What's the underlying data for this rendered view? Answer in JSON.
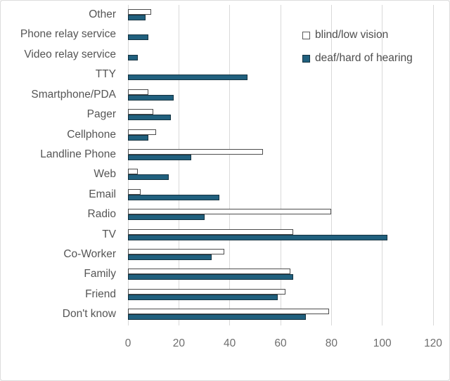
{
  "chart_data": {
    "type": "bar",
    "orientation": "horizontal",
    "title": "",
    "xlabel": "",
    "ylabel": "",
    "grid": true,
    "legend_position": "top-right",
    "xlim": [
      0,
      120
    ],
    "ticks": [
      0,
      20,
      40,
      60,
      80,
      100,
      120
    ],
    "categories": [
      "Other",
      "Phone relay service",
      "Video relay service",
      "TTY",
      "Smartphone/PDA",
      "Pager",
      "Cellphone",
      "Landline Phone",
      "Web",
      "Email",
      "Radio",
      "TV",
      "Co-Worker",
      "Family",
      "Friend",
      "Don't know"
    ],
    "series": [
      {
        "name": "blind/low vision",
        "fill_color": "#ffffff",
        "border_color": "#4d4d4d",
        "values": [
          9,
          0,
          0,
          0,
          8,
          10,
          11,
          53,
          4,
          5,
          80,
          65,
          38,
          64,
          62,
          79
        ]
      },
      {
        "name": "deaf/hard of hearing",
        "fill_color": "#20607e",
        "border_color": "#143240",
        "values": [
          7,
          8,
          4,
          47,
          18,
          17,
          8,
          25,
          16,
          36,
          30,
          102,
          33,
          65,
          59,
          70
        ]
      }
    ]
  },
  "colors": {
    "grid": "#d9d9d9",
    "tick_text": "#6e6e6e",
    "category_text": "#555555",
    "legend_text": "#4d4d4d",
    "frame_border": "#dcdcdc",
    "background": "#ffffff"
  }
}
